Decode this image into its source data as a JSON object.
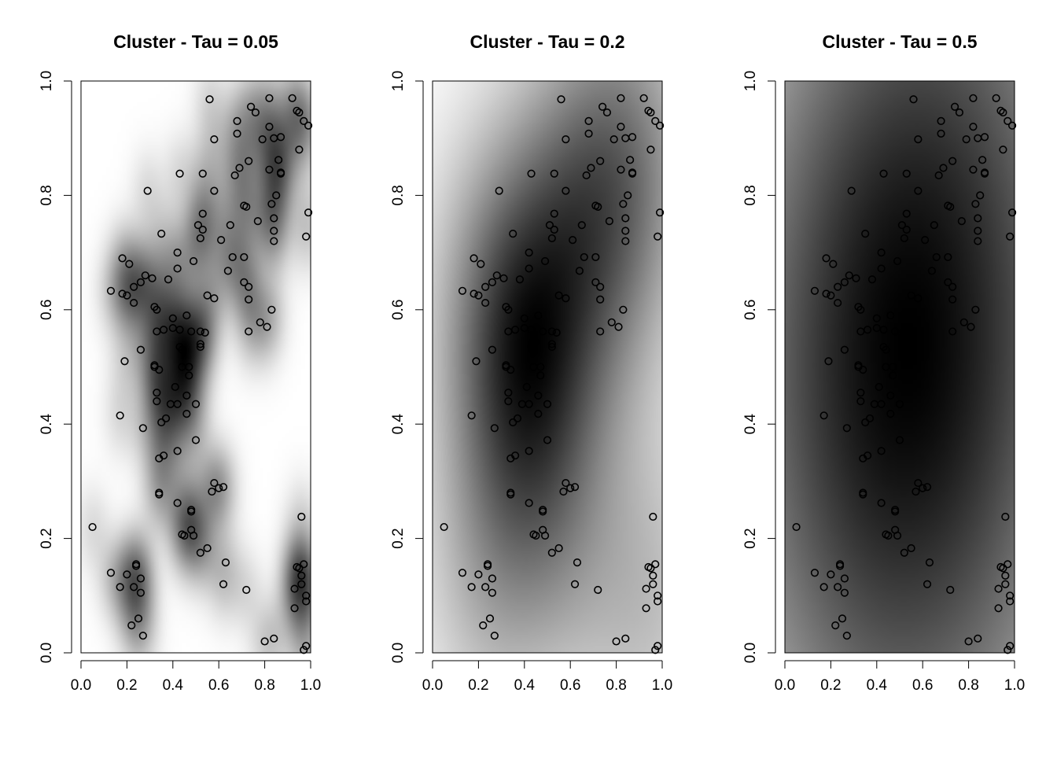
{
  "colors": {
    "background": "#ffffff",
    "point_stroke": "#000000",
    "low_intensity": "#ffffff",
    "high_intensity": "#000000"
  },
  "points": [
    [
      0.05,
      0.22
    ],
    [
      0.13,
      0.633
    ],
    [
      0.13,
      0.14
    ],
    [
      0.17,
      0.415
    ],
    [
      0.17,
      0.115
    ],
    [
      0.18,
      0.69
    ],
    [
      0.18,
      0.628
    ],
    [
      0.19,
      0.51
    ],
    [
      0.2,
      0.625
    ],
    [
      0.2,
      0.137
    ],
    [
      0.21,
      0.68
    ],
    [
      0.22,
      0.048
    ],
    [
      0.23,
      0.64
    ],
    [
      0.23,
      0.612
    ],
    [
      0.23,
      0.115
    ],
    [
      0.24,
      0.155
    ],
    [
      0.24,
      0.152
    ],
    [
      0.25,
      0.06
    ],
    [
      0.26,
      0.648
    ],
    [
      0.26,
      0.53
    ],
    [
      0.26,
      0.13
    ],
    [
      0.26,
      0.105
    ],
    [
      0.27,
      0.03
    ],
    [
      0.27,
      0.393
    ],
    [
      0.28,
      0.66
    ],
    [
      0.29,
      0.808
    ],
    [
      0.31,
      0.655
    ],
    [
      0.32,
      0.605
    ],
    [
      0.32,
      0.503
    ],
    [
      0.32,
      0.5
    ],
    [
      0.33,
      0.6
    ],
    [
      0.33,
      0.562
    ],
    [
      0.33,
      0.455
    ],
    [
      0.33,
      0.44
    ],
    [
      0.34,
      0.495
    ],
    [
      0.34,
      0.34
    ],
    [
      0.34,
      0.28
    ],
    [
      0.34,
      0.277
    ],
    [
      0.35,
      0.733
    ],
    [
      0.35,
      0.403
    ],
    [
      0.36,
      0.565
    ],
    [
      0.36,
      0.345
    ],
    [
      0.37,
      0.41
    ],
    [
      0.38,
      0.653
    ],
    [
      0.39,
      0.435
    ],
    [
      0.4,
      0.585
    ],
    [
      0.4,
      0.568
    ],
    [
      0.41,
      0.465
    ],
    [
      0.42,
      0.7
    ],
    [
      0.42,
      0.672
    ],
    [
      0.42,
      0.262
    ],
    [
      0.42,
      0.435
    ],
    [
      0.42,
      0.353
    ],
    [
      0.43,
      0.838
    ],
    [
      0.43,
      0.565
    ],
    [
      0.43,
      0.535
    ],
    [
      0.44,
      0.53
    ],
    [
      0.44,
      0.5
    ],
    [
      0.44,
      0.207
    ],
    [
      0.45,
      0.205
    ],
    [
      0.46,
      0.59
    ],
    [
      0.46,
      0.45
    ],
    [
      0.46,
      0.418
    ],
    [
      0.47,
      0.485
    ],
    [
      0.47,
      0.5
    ],
    [
      0.48,
      0.562
    ],
    [
      0.48,
      0.25
    ],
    [
      0.48,
      0.247
    ],
    [
      0.48,
      0.215
    ],
    [
      0.49,
      0.685
    ],
    [
      0.49,
      0.205
    ],
    [
      0.5,
      0.435
    ],
    [
      0.5,
      0.372
    ],
    [
      0.51,
      0.748
    ],
    [
      0.52,
      0.725
    ],
    [
      0.52,
      0.562
    ],
    [
      0.52,
      0.54
    ],
    [
      0.52,
      0.535
    ],
    [
      0.52,
      0.175
    ],
    [
      0.53,
      0.838
    ],
    [
      0.53,
      0.768
    ],
    [
      0.53,
      0.74
    ],
    [
      0.54,
      0.56
    ],
    [
      0.55,
      0.625
    ],
    [
      0.55,
      0.183
    ],
    [
      0.56,
      0.968
    ],
    [
      0.57,
      0.282
    ],
    [
      0.58,
      0.898
    ],
    [
      0.58,
      0.808
    ],
    [
      0.58,
      0.62
    ],
    [
      0.58,
      0.297
    ],
    [
      0.6,
      0.288
    ],
    [
      0.61,
      0.722
    ],
    [
      0.62,
      0.29
    ],
    [
      0.62,
      0.12
    ],
    [
      0.63,
      0.158
    ],
    [
      0.64,
      0.668
    ],
    [
      0.65,
      0.748
    ],
    [
      0.66,
      0.692
    ],
    [
      0.67,
      0.835
    ],
    [
      0.68,
      0.93
    ],
    [
      0.68,
      0.908
    ],
    [
      0.69,
      0.848
    ],
    [
      0.71,
      0.782
    ],
    [
      0.71,
      0.648
    ],
    [
      0.71,
      0.692
    ],
    [
      0.72,
      0.11
    ],
    [
      0.72,
      0.78
    ],
    [
      0.73,
      0.86
    ],
    [
      0.73,
      0.64
    ],
    [
      0.73,
      0.618
    ],
    [
      0.73,
      0.562
    ],
    [
      0.74,
      0.955
    ],
    [
      0.76,
      0.945
    ],
    [
      0.77,
      0.755
    ],
    [
      0.78,
      0.578
    ],
    [
      0.79,
      0.898
    ],
    [
      0.8,
      0.02
    ],
    [
      0.81,
      0.57
    ],
    [
      0.82,
      0.97
    ],
    [
      0.82,
      0.92
    ],
    [
      0.82,
      0.845
    ],
    [
      0.83,
      0.785
    ],
    [
      0.83,
      0.6
    ],
    [
      0.84,
      0.76
    ],
    [
      0.84,
      0.738
    ],
    [
      0.84,
      0.72
    ],
    [
      0.84,
      0.9
    ],
    [
      0.84,
      0.025
    ],
    [
      0.85,
      0.8
    ],
    [
      0.86,
      0.862
    ],
    [
      0.87,
      0.84
    ],
    [
      0.87,
      0.838
    ],
    [
      0.87,
      0.902
    ],
    [
      0.92,
      0.97
    ],
    [
      0.93,
      0.078
    ],
    [
      0.93,
      0.112
    ],
    [
      0.94,
      0.15
    ],
    [
      0.94,
      0.948
    ],
    [
      0.95,
      0.945
    ],
    [
      0.95,
      0.88
    ],
    [
      0.95,
      0.148
    ],
    [
      0.96,
      0.238
    ],
    [
      0.96,
      0.135
    ],
    [
      0.96,
      0.12
    ],
    [
      0.97,
      0.93
    ],
    [
      0.97,
      0.155
    ],
    [
      0.97,
      0.005
    ],
    [
      0.98,
      0.728
    ],
    [
      0.98,
      0.012
    ],
    [
      0.98,
      0.1
    ],
    [
      0.98,
      0.09
    ],
    [
      0.99,
      0.922
    ],
    [
      0.99,
      0.77
    ]
  ],
  "chart_data": [
    {
      "type": "heatmap",
      "title": "Cluster - Tau = 0.05",
      "xlabel": "",
      "ylabel": "",
      "xlim": [
        0,
        1
      ],
      "ylim": [
        0,
        1
      ],
      "x_ticks": [
        "0.0",
        "0.2",
        "0.4",
        "0.6",
        "0.8",
        "1.0"
      ],
      "y_ticks": [
        "0.0",
        "0.2",
        "0.4",
        "0.6",
        "0.8",
        "1.0"
      ],
      "tau": 0.05,
      "grid": false
    },
    {
      "type": "heatmap",
      "title": "Cluster - Tau = 0.2",
      "xlabel": "",
      "ylabel": "",
      "xlim": [
        0,
        1
      ],
      "ylim": [
        0,
        1
      ],
      "x_ticks": [
        "0.0",
        "0.2",
        "0.4",
        "0.6",
        "0.8",
        "1.0"
      ],
      "y_ticks": [
        "0.0",
        "0.2",
        "0.4",
        "0.6",
        "0.8",
        "1.0"
      ],
      "tau": 0.2,
      "grid": false
    },
    {
      "type": "heatmap",
      "title": "Cluster - Tau = 0.5",
      "xlabel": "",
      "ylabel": "",
      "xlim": [
        0,
        1
      ],
      "ylim": [
        0,
        1
      ],
      "x_ticks": [
        "0.0",
        "0.2",
        "0.4",
        "0.6",
        "0.8",
        "1.0"
      ],
      "y_ticks": [
        "0.0",
        "0.2",
        "0.4",
        "0.6",
        "0.8",
        "1.0"
      ],
      "tau": 0.5,
      "grid": false
    }
  ]
}
